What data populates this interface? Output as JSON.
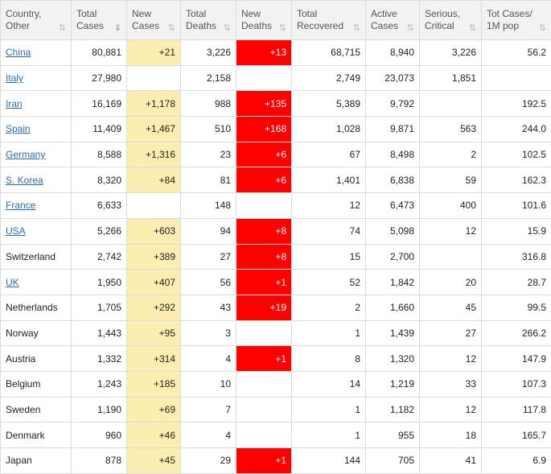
{
  "columns": [
    {
      "key": "country",
      "line1": "Country,",
      "line2": "Other",
      "sort": "⇅",
      "active": false
    },
    {
      "key": "total_cases",
      "line1": "Total",
      "line2": "Cases",
      "sort": "⇓",
      "active": true
    },
    {
      "key": "new_cases",
      "line1": "New",
      "line2": "Cases",
      "sort": "⇅",
      "active": false
    },
    {
      "key": "total_deaths",
      "line1": "Total",
      "line2": "Deaths",
      "sort": "⇅",
      "active": false
    },
    {
      "key": "new_deaths",
      "line1": "New",
      "line2": "Deaths",
      "sort": "⇅",
      "active": false
    },
    {
      "key": "total_recovered",
      "line1": "Total",
      "line2": "Recovered",
      "sort": "⇅",
      "active": false
    },
    {
      "key": "active_cases",
      "line1": "Active",
      "line2": "Cases",
      "sort": "⇅",
      "active": false
    },
    {
      "key": "serious",
      "line1": "Serious,",
      "line2": "Critical",
      "sort": "⇅",
      "active": false
    },
    {
      "key": "per_million",
      "line1": "Tot Cases/",
      "line2": "1M pop",
      "sort": "⇅",
      "active": false
    }
  ],
  "colors": {
    "new_cases_bg": "#fbeeb0",
    "new_deaths_bg": "#ff0000",
    "link": "#2a6ebb",
    "header_bg": "#f2f2f2"
  },
  "rows": [
    {
      "country": "China",
      "link": true,
      "total_cases": "80,881",
      "new_cases": "+21",
      "total_deaths": "3,226",
      "new_deaths": "+13",
      "total_recovered": "68,715",
      "active_cases": "8,940",
      "serious": "3,226",
      "per_million": "56.2"
    },
    {
      "country": "Italy",
      "link": true,
      "total_cases": "27,980",
      "new_cases": "",
      "total_deaths": "2,158",
      "new_deaths": "",
      "total_recovered": "2,749",
      "active_cases": "23,073",
      "serious": "1,851",
      "per_million": ""
    },
    {
      "country": "Iran",
      "link": true,
      "total_cases": "16,169",
      "new_cases": "+1,178",
      "total_deaths": "988",
      "new_deaths": "+135",
      "total_recovered": "5,389",
      "active_cases": "9,792",
      "serious": "",
      "per_million": "192.5"
    },
    {
      "country": "Spain",
      "link": true,
      "total_cases": "11,409",
      "new_cases": "+1,467",
      "total_deaths": "510",
      "new_deaths": "+168",
      "total_recovered": "1,028",
      "active_cases": "9,871",
      "serious": "563",
      "per_million": "244.0"
    },
    {
      "country": "Germany",
      "link": true,
      "total_cases": "8,588",
      "new_cases": "+1,316",
      "total_deaths": "23",
      "new_deaths": "+6",
      "total_recovered": "67",
      "active_cases": "8,498",
      "serious": "2",
      "per_million": "102.5"
    },
    {
      "country": "S. Korea",
      "link": true,
      "total_cases": "8,320",
      "new_cases": "+84",
      "total_deaths": "81",
      "new_deaths": "+6",
      "total_recovered": "1,401",
      "active_cases": "6,838",
      "serious": "59",
      "per_million": "162.3"
    },
    {
      "country": "France",
      "link": true,
      "total_cases": "6,633",
      "new_cases": "",
      "total_deaths": "148",
      "new_deaths": "",
      "total_recovered": "12",
      "active_cases": "6,473",
      "serious": "400",
      "per_million": "101.6"
    },
    {
      "country": "USA",
      "link": true,
      "total_cases": "5,266",
      "new_cases": "+603",
      "total_deaths": "94",
      "new_deaths": "+8",
      "total_recovered": "74",
      "active_cases": "5,098",
      "serious": "12",
      "per_million": "15.9"
    },
    {
      "country": "Switzerland",
      "link": false,
      "total_cases": "2,742",
      "new_cases": "+389",
      "total_deaths": "27",
      "new_deaths": "+8",
      "total_recovered": "15",
      "active_cases": "2,700",
      "serious": "",
      "per_million": "316.8"
    },
    {
      "country": "UK",
      "link": true,
      "total_cases": "1,950",
      "new_cases": "+407",
      "total_deaths": "56",
      "new_deaths": "+1",
      "total_recovered": "52",
      "active_cases": "1,842",
      "serious": "20",
      "per_million": "28.7"
    },
    {
      "country": "Netherlands",
      "link": false,
      "total_cases": "1,705",
      "new_cases": "+292",
      "total_deaths": "43",
      "new_deaths": "+19",
      "total_recovered": "2",
      "active_cases": "1,660",
      "serious": "45",
      "per_million": "99.5"
    },
    {
      "country": "Norway",
      "link": false,
      "total_cases": "1,443",
      "new_cases": "+95",
      "total_deaths": "3",
      "new_deaths": "",
      "total_recovered": "1",
      "active_cases": "1,439",
      "serious": "27",
      "per_million": "266.2"
    },
    {
      "country": "Austria",
      "link": false,
      "total_cases": "1,332",
      "new_cases": "+314",
      "total_deaths": "4",
      "new_deaths": "+1",
      "total_recovered": "8",
      "active_cases": "1,320",
      "serious": "12",
      "per_million": "147.9"
    },
    {
      "country": "Belgium",
      "link": false,
      "total_cases": "1,243",
      "new_cases": "+185",
      "total_deaths": "10",
      "new_deaths": "",
      "total_recovered": "14",
      "active_cases": "1,219",
      "serious": "33",
      "per_million": "107.3"
    },
    {
      "country": "Sweden",
      "link": false,
      "total_cases": "1,190",
      "new_cases": "+69",
      "total_deaths": "7",
      "new_deaths": "",
      "total_recovered": "1",
      "active_cases": "1,182",
      "serious": "12",
      "per_million": "117.8"
    },
    {
      "country": "Denmark",
      "link": false,
      "total_cases": "960",
      "new_cases": "+46",
      "total_deaths": "4",
      "new_deaths": "",
      "total_recovered": "1",
      "active_cases": "955",
      "serious": "18",
      "per_million": "165.7"
    },
    {
      "country": "Japan",
      "link": false,
      "total_cases": "878",
      "new_cases": "+45",
      "total_deaths": "29",
      "new_deaths": "+1",
      "total_recovered": "144",
      "active_cases": "705",
      "serious": "41",
      "per_million": "6.9"
    }
  ]
}
